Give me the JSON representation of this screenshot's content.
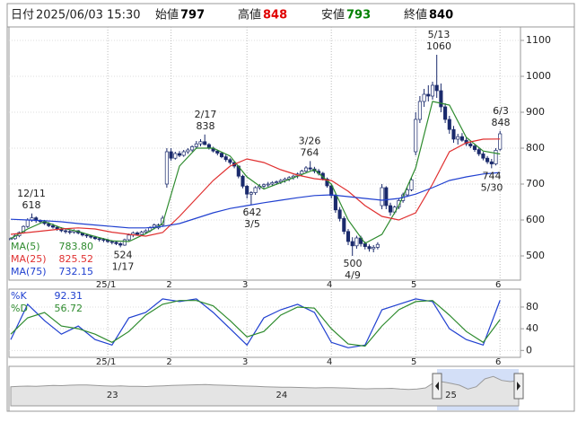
{
  "header": {
    "date_label": "日付",
    "datetime": "2025/06/03 15:30",
    "fields": [
      {
        "label": "始値",
        "value": 797,
        "color": "#000000"
      },
      {
        "label": "高値",
        "value": 848,
        "color": "#e00000"
      },
      {
        "label": "安値",
        "value": 793,
        "color": "#008000"
      },
      {
        "label": "終値",
        "value": 840,
        "color": "#000000"
      }
    ]
  },
  "chart_data": [
    {
      "type": "candlestick",
      "ylim": [
        432.5,
        1137.5
      ],
      "yticks": [
        500,
        600,
        700,
        800,
        900,
        1000,
        1100
      ],
      "grid": true,
      "up_color": "#ffffff",
      "down_color": "#1a2a6c",
      "edge_color": "#1a2a6c",
      "xticks": [
        {
          "value": 23,
          "label": "25/1"
        },
        {
          "value": 38,
          "label": "2"
        },
        {
          "value": 56,
          "label": "3"
        },
        {
          "value": 76,
          "label": "4"
        },
        {
          "value": 96,
          "label": "5"
        },
        {
          "value": 116,
          "label": "6"
        }
      ],
      "candles": [
        [
          545,
          552,
          540,
          548
        ],
        [
          548,
          560,
          545,
          556
        ],
        [
          556,
          568,
          552,
          565
        ],
        [
          565,
          585,
          562,
          582
        ],
        [
          582,
          605,
          578,
          600
        ],
        [
          600,
          618,
          595,
          606
        ],
        [
          606,
          610,
          592,
          598
        ],
        [
          598,
          602,
          590,
          596
        ],
        [
          596,
          600,
          586,
          590
        ],
        [
          590,
          594,
          580,
          584
        ],
        [
          584,
          590,
          576,
          580
        ],
        [
          580,
          584,
          570,
          574
        ],
        [
          574,
          580,
          566,
          570
        ],
        [
          570,
          574,
          562,
          568
        ],
        [
          568,
          572,
          560,
          566
        ],
        [
          566,
          574,
          562,
          570
        ],
        [
          570,
          572,
          560,
          564
        ],
        [
          564,
          566,
          554,
          558
        ],
        [
          558,
          562,
          550,
          556
        ],
        [
          556,
          558,
          548,
          552
        ],
        [
          552,
          556,
          544,
          548
        ],
        [
          548,
          552,
          540,
          546
        ],
        [
          546,
          550,
          538,
          544
        ],
        [
          544,
          548,
          536,
          540
        ],
        [
          540,
          544,
          532,
          538
        ],
        [
          538,
          542,
          530,
          534
        ],
        [
          534,
          538,
          524,
          530
        ],
        [
          530,
          548,
          528,
          545
        ],
        [
          545,
          562,
          542,
          558
        ],
        [
          558,
          568,
          552,
          564
        ],
        [
          564,
          568,
          556,
          560
        ],
        [
          560,
          570,
          558,
          566
        ],
        [
          566,
          574,
          562,
          570
        ],
        [
          570,
          582,
          566,
          578
        ],
        [
          578,
          590,
          574,
          586
        ],
        [
          578,
          590,
          574,
          586
        ],
        [
          586,
          612,
          582,
          605
        ],
        [
          700,
          800,
          690,
          790
        ],
        [
          790,
          800,
          765,
          772
        ],
        [
          772,
          790,
          768,
          785
        ],
        [
          785,
          792,
          775,
          780
        ],
        [
          780,
          795,
          776,
          790
        ],
        [
          790,
          800,
          784,
          795
        ],
        [
          795,
          808,
          790,
          804
        ],
        [
          804,
          820,
          798,
          812
        ],
        [
          812,
          825,
          805,
          818
        ],
        [
          818,
          838,
          808,
          810
        ],
        [
          810,
          814,
          796,
          800
        ],
        [
          800,
          804,
          788,
          792
        ],
        [
          792,
          796,
          780,
          786
        ],
        [
          786,
          790,
          772,
          776
        ],
        [
          776,
          782,
          762,
          768
        ],
        [
          768,
          772,
          754,
          760
        ],
        [
          760,
          764,
          744,
          750
        ],
        [
          750,
          752,
          716,
          722
        ],
        [
          722,
          726,
          688,
          694
        ],
        [
          694,
          698,
          660,
          672
        ],
        [
          672,
          680,
          642,
          676
        ],
        [
          676,
          694,
          670,
          690
        ],
        [
          690,
          700,
          684,
          694
        ],
        [
          694,
          702,
          688,
          698
        ],
        [
          698,
          706,
          692,
          700
        ],
        [
          700,
          708,
          694,
          704
        ],
        [
          704,
          710,
          698,
          706
        ],
        [
          706,
          714,
          700,
          710
        ],
        [
          710,
          718,
          704,
          714
        ],
        [
          714,
          722,
          708,
          718
        ],
        [
          718,
          726,
          712,
          722
        ],
        [
          722,
          732,
          716,
          728
        ],
        [
          728,
          740,
          722,
          736
        ],
        [
          736,
          750,
          730,
          745
        ],
        [
          745,
          764,
          738,
          742
        ],
        [
          742,
          748,
          730,
          736
        ],
        [
          736,
          742,
          724,
          730
        ],
        [
          730,
          734,
          710,
          714
        ],
        [
          714,
          718,
          690,
          695
        ],
        [
          695,
          700,
          660,
          668
        ],
        [
          668,
          672,
          620,
          628
        ],
        [
          628,
          636,
          596,
          604
        ],
        [
          604,
          610,
          560,
          568
        ],
        [
          568,
          575,
          530,
          540
        ],
        [
          540,
          552,
          500,
          528
        ],
        [
          528,
          556,
          520,
          550
        ],
        [
          550,
          556,
          526,
          534
        ],
        [
          534,
          540,
          518,
          526
        ],
        [
          526,
          532,
          512,
          520
        ],
        [
          520,
          530,
          510,
          524
        ],
        [
          524,
          538,
          518,
          532
        ],
        [
          640,
          700,
          630,
          690
        ],
        [
          690,
          694,
          630,
          640
        ],
        [
          640,
          648,
          612,
          622
        ],
        [
          622,
          640,
          616,
          636
        ],
        [
          636,
          660,
          630,
          654
        ],
        [
          654,
          676,
          648,
          670
        ],
        [
          670,
          690,
          664,
          684
        ],
        [
          684,
          720,
          680,
          712
        ],
        [
          790,
          900,
          780,
          880
        ],
        [
          880,
          945,
          870,
          930
        ],
        [
          930,
          965,
          915,
          950
        ],
        [
          950,
          975,
          930,
          945
        ],
        [
          945,
          985,
          935,
          975
        ],
        [
          975,
          1060,
          940,
          960
        ],
        [
          960,
          980,
          900,
          915
        ],
        [
          915,
          925,
          870,
          880
        ],
        [
          880,
          890,
          840,
          852
        ],
        [
          852,
          862,
          815,
          825
        ],
        [
          825,
          840,
          810,
          832
        ],
        [
          832,
          842,
          818,
          822
        ],
        [
          822,
          830,
          806,
          812
        ],
        [
          812,
          820,
          800,
          806
        ],
        [
          806,
          812,
          790,
          796
        ],
        [
          796,
          802,
          778,
          784
        ],
        [
          784,
          790,
          766,
          772
        ],
        [
          772,
          778,
          756,
          762
        ],
        [
          762,
          770,
          744,
          756
        ],
        [
          756,
          800,
          752,
          794
        ],
        [
          797,
          848,
          793,
          840
        ]
      ],
      "series": [
        {
          "name": "MA(5)",
          "latest": "783.80",
          "color": "#2e8b2e",
          "x": [
            0,
            4,
            8,
            12,
            16,
            20,
            24,
            28,
            32,
            36,
            40,
            44,
            48,
            52,
            56,
            60,
            64,
            68,
            72,
            76,
            80,
            84,
            88,
            92,
            96,
            100,
            104,
            108,
            112,
            116
          ],
          "values": [
            548,
            575,
            596,
            578,
            568,
            554,
            542,
            540,
            562,
            590,
            750,
            800,
            800,
            778,
            720,
            686,
            704,
            722,
            740,
            700,
            600,
            535,
            560,
            640,
            745,
            930,
            920,
            830,
            792,
            783.8
          ]
        },
        {
          "name": "MA(25)",
          "latest": "825.52",
          "color": "#e03030",
          "x": [
            0,
            4,
            8,
            12,
            16,
            20,
            24,
            28,
            32,
            36,
            40,
            44,
            48,
            52,
            56,
            60,
            64,
            68,
            72,
            76,
            80,
            84,
            88,
            92,
            96,
            100,
            104,
            108,
            112,
            116
          ],
          "values": [
            560,
            565,
            570,
            575,
            578,
            575,
            566,
            560,
            555,
            565,
            610,
            660,
            710,
            750,
            770,
            760,
            740,
            725,
            715,
            710,
            680,
            640,
            610,
            600,
            620,
            700,
            790,
            815,
            825,
            825.52
          ]
        },
        {
          "name": "MA(75)",
          "latest": "732.15",
          "color": "#2040d0",
          "x": [
            0,
            4,
            8,
            12,
            16,
            20,
            24,
            28,
            32,
            36,
            40,
            44,
            48,
            52,
            56,
            60,
            64,
            68,
            72,
            76,
            80,
            84,
            88,
            92,
            96,
            100,
            104,
            108,
            112,
            116
          ],
          "values": [
            602,
            600,
            598,
            595,
            590,
            586,
            582,
            578,
            578,
            582,
            590,
            605,
            620,
            632,
            640,
            648,
            655,
            662,
            668,
            670,
            665,
            660,
            655,
            660,
            672,
            690,
            710,
            720,
            728,
            732.15
          ]
        }
      ],
      "annotations": [
        {
          "date": "12/11",
          "value": 618,
          "position": "above"
        },
        {
          "date": "1/17",
          "value": 524,
          "position": "below"
        },
        {
          "date": "2/17",
          "value": 838,
          "position": "above"
        },
        {
          "date": "3/5",
          "value": 642,
          "position": "below"
        },
        {
          "date": "3/26",
          "value": 764,
          "position": "above"
        },
        {
          "date": "4/9",
          "value": 500,
          "position": "below"
        },
        {
          "date": "5/13",
          "value": 1060,
          "position": "above"
        },
        {
          "date": "5/30",
          "value": 744,
          "position": "below"
        },
        {
          "date": "6/3",
          "value": 848,
          "position": "above"
        }
      ]
    },
    {
      "type": "line",
      "ylim": [
        -12.7,
        113
      ],
      "yticks": [
        0,
        40,
        80
      ],
      "xticks": [
        {
          "value": 23,
          "label": "25/1"
        },
        {
          "value": 38,
          "label": "2"
        },
        {
          "value": 56,
          "label": "3"
        },
        {
          "value": 76,
          "label": "4"
        },
        {
          "value": 96,
          "label": "5"
        },
        {
          "value": 116,
          "label": "6"
        }
      ],
      "series": [
        {
          "name": "%K",
          "latest": "92.31",
          "color": "#2040d0",
          "x": [
            0,
            4,
            8,
            12,
            16,
            20,
            24,
            28,
            32,
            36,
            40,
            44,
            48,
            52,
            56,
            60,
            64,
            68,
            72,
            76,
            80,
            84,
            88,
            92,
            96,
            100,
            104,
            108,
            112,
            116
          ],
          "values": [
            20,
            85,
            55,
            30,
            45,
            20,
            10,
            60,
            70,
            95,
            90,
            95,
            70,
            40,
            10,
            60,
            75,
            85,
            70,
            15,
            5,
            10,
            75,
            85,
            95,
            90,
            40,
            20,
            10,
            92.31
          ]
        },
        {
          "name": "%D",
          "latest": "56.72",
          "color": "#2e8b2e",
          "x": [
            0,
            4,
            8,
            12,
            16,
            20,
            24,
            28,
            32,
            36,
            40,
            44,
            48,
            52,
            56,
            60,
            64,
            68,
            72,
            76,
            80,
            84,
            88,
            92,
            96,
            100,
            104,
            108,
            112,
            116
          ],
          "values": [
            30,
            60,
            70,
            45,
            40,
            30,
            15,
            35,
            65,
            85,
            92,
            92,
            82,
            55,
            25,
            35,
            65,
            80,
            78,
            40,
            12,
            8,
            45,
            75,
            90,
            92,
            65,
            35,
            15,
            56.72
          ]
        }
      ]
    },
    {
      "type": "area",
      "ylim": [
        0,
        1200
      ],
      "color": "#999999",
      "selected_color": "#a8c0f0",
      "xticks": [
        {
          "value": 12,
          "label": "23"
        },
        {
          "value": 32,
          "label": "24"
        },
        {
          "value": 52,
          "label": "25"
        }
      ],
      "values": [
        640,
        650,
        660,
        655,
        670,
        680,
        675,
        690,
        700,
        695,
        680,
        670,
        660,
        665,
        655,
        650,
        645,
        660,
        670,
        680,
        690,
        700,
        705,
        710,
        700,
        690,
        680,
        670,
        660,
        650,
        640,
        630,
        625,
        620,
        615,
        610,
        600,
        605,
        610,
        600,
        590,
        580,
        570,
        575,
        580,
        585,
        560,
        550,
        560,
        600,
        780,
        800,
        750,
        690,
        560,
        640,
        900,
        980,
        850,
        810,
        840
      ]
    }
  ]
}
